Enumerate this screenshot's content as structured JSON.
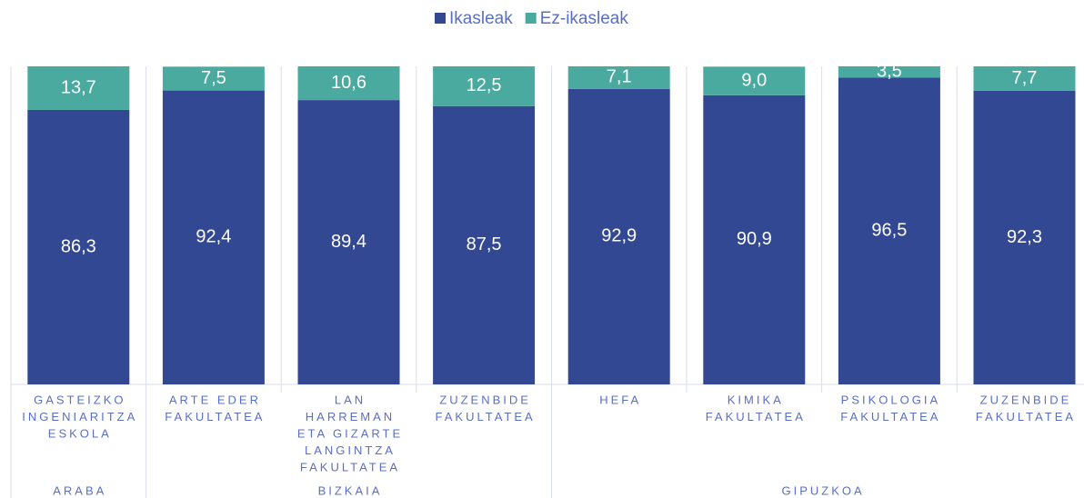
{
  "chart_data": {
    "type": "stacked_bar",
    "categories": [
      [
        "GASTEIZKO",
        "INGENIARITZA",
        "ESKOLA"
      ],
      [
        "ARTE EDER",
        "FAKULTATEA"
      ],
      [
        "LAN",
        "HARREMAN",
        "ETA GIZARTE",
        "LANGINTZA",
        "FAKULTATEA"
      ],
      [
        "ZUZENBIDE",
        "FAKULTATEA"
      ],
      [
        "HEFA"
      ],
      [
        "KIMIKA",
        "FAKULTATEA"
      ],
      [
        "PSIKOLOGIA",
        "FAKULTATEA"
      ],
      [
        "ZUZENBIDE",
        "FAKULTATEA"
      ]
    ],
    "groups": [
      {
        "label": "ARABA",
        "span": 1
      },
      {
        "label": "BIZKAIA",
        "span": 3
      },
      {
        "label": "GIPUZKOA",
        "span": 4
      }
    ],
    "series": [
      {
        "name": "Ikasleak",
        "color": "#334893",
        "values": [
          86.3,
          92.4,
          89.4,
          87.5,
          92.9,
          90.9,
          96.5,
          92.3
        ],
        "value_labels": [
          "86,3",
          "92,4",
          "89,4",
          "87,5",
          "92,9",
          "90,9",
          "96,5",
          "92,3"
        ]
      },
      {
        "name": "Ez-ikasleak",
        "color": "#4aaa9f",
        "values": [
          13.7,
          7.5,
          10.6,
          12.5,
          7.1,
          9.0,
          3.5,
          7.7
        ],
        "value_labels": [
          "13,7",
          "7,5",
          "10,6",
          "12,5",
          "7,1",
          "9,0",
          "3,5",
          "7,7"
        ]
      }
    ],
    "ylim": [
      0,
      100
    ],
    "legend": "top"
  }
}
